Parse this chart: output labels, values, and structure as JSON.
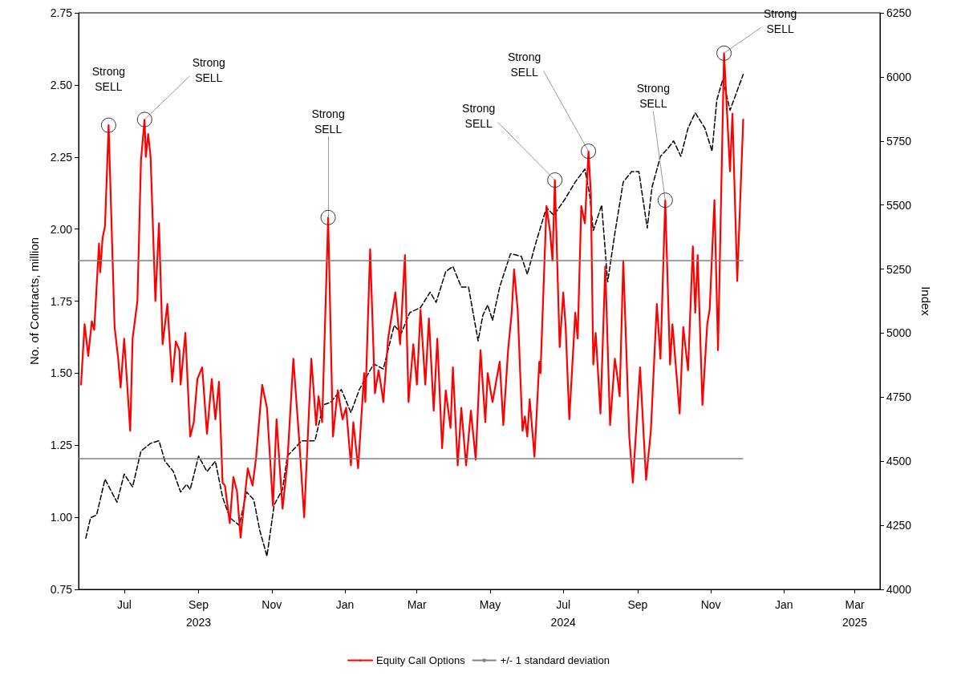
{
  "chart_data": {
    "type": "line",
    "ylabel": "No. of Contracts, million",
    "y2label": "Index",
    "legend": "bottom",
    "grid": false,
    "marker": "none",
    "xlim": [
      "2023-05-24",
      "2025-03-22"
    ],
    "xticks": [
      {
        "value": "2023-07-01",
        "label": "Jul"
      },
      {
        "value": "2023-09-01",
        "label": "Sep\n2023"
      },
      {
        "value": "2023-11-01",
        "label": "Nov"
      },
      {
        "value": "2024-01-01",
        "label": "Jan"
      },
      {
        "value": "2024-03-01",
        "label": "Mar"
      },
      {
        "value": "2024-05-01",
        "label": "May"
      },
      {
        "value": "2024-07-01",
        "label": "Jul\n2024"
      },
      {
        "value": "2024-09-01",
        "label": "Sep"
      },
      {
        "value": "2024-11-01",
        "label": "Nov"
      },
      {
        "value": "2025-01-01",
        "label": "Jan"
      },
      {
        "value": "2025-03-01",
        "label": "Mar\n2025"
      }
    ],
    "ylim": [
      0.75,
      2.75
    ],
    "yticks": [
      0.75,
      {
        "value": 1,
        "label": "1.00"
      },
      1.25,
      {
        "value": 1.5,
        "label": "1.50"
      },
      1.75,
      {
        "value": 2,
        "label": "2.00"
      },
      2.25,
      {
        "value": 2.5,
        "label": "2.50"
      },
      2.75
    ],
    "y2lim": [
      4000,
      6250
    ],
    "y2ticks": [
      4000,
      4250,
      4500,
      4750,
      5000,
      5250,
      5500,
      5750,
      6000,
      6250
    ],
    "series": [
      {
        "color": "#000000",
        "axis": "y2",
        "line_style": "dashed",
        "x": [
          "2023-05-30",
          "2023-06-03",
          "2023-06-08",
          "2023-06-15",
          "2023-06-25",
          "2023-07-01",
          "2023-07-08",
          "2023-07-15",
          "2023-07-23",
          "2023-07-30",
          "2023-08-04",
          "2023-08-11",
          "2023-08-17",
          "2023-08-22",
          "2023-08-25",
          "2023-09-01",
          "2023-09-08",
          "2023-09-15",
          "2023-09-21",
          "2023-09-27",
          "2023-10-05",
          "2023-10-11",
          "2023-10-17",
          "2023-10-22",
          "2023-10-28",
          "2023-11-03",
          "2023-11-10",
          "2023-11-14",
          "2023-11-26",
          "2023-12-07",
          "2023-12-14",
          "2023-12-20",
          "2023-12-29",
          "2024-01-06",
          "2024-01-13",
          "2024-01-25",
          "2024-02-02",
          "2024-02-11",
          "2024-02-17",
          "2024-02-24",
          "2024-03-04",
          "2024-03-12",
          "2024-03-17",
          "2024-03-25",
          "2024-03-31",
          "2024-04-07",
          "2024-04-13",
          "2024-04-21",
          "2024-04-25",
          "2024-04-29",
          "2024-05-03",
          "2024-05-09",
          "2024-05-18",
          "2024-05-27",
          "2024-06-01",
          "2024-06-08",
          "2024-06-17",
          "2024-06-23",
          "2024-07-02",
          "2024-07-11",
          "2024-07-19",
          "2024-07-23",
          "2024-07-26",
          "2024-08-02",
          "2024-08-07",
          "2024-08-13",
          "2024-08-20",
          "2024-08-27",
          "2024-09-02",
          "2024-09-09",
          "2024-09-13",
          "2024-09-20",
          "2024-09-26",
          "2024-10-01",
          "2024-10-07",
          "2024-10-13",
          "2024-10-19",
          "2024-10-27",
          "2024-11-02",
          "2024-11-06",
          "2024-11-11",
          "2024-11-17",
          "2024-11-28"
        ],
        "values": [
          4200,
          4280,
          4290,
          4430,
          4340,
          4450,
          4400,
          4540,
          4570,
          4580,
          4500,
          4460,
          4380,
          4410,
          4390,
          4520,
          4460,
          4500,
          4360,
          4280,
          4250,
          4380,
          4350,
          4230,
          4130,
          4330,
          4390,
          4520,
          4580,
          4580,
          4720,
          4730,
          4780,
          4690,
          4780,
          4880,
          4860,
          5030,
          5000,
          5080,
          5100,
          5160,
          5120,
          5240,
          5260,
          5180,
          5180,
          4970,
          5070,
          5110,
          5050,
          5180,
          5310,
          5300,
          5230,
          5350,
          5490,
          5460,
          5520,
          5590,
          5640,
          5540,
          5400,
          5500,
          5200,
          5390,
          5590,
          5630,
          5630,
          5410,
          5570,
          5690,
          5720,
          5750,
          5690,
          5800,
          5860,
          5800,
          5710,
          5910,
          5990,
          5870,
          6010
        ]
      },
      {
        "name": "Equity Call Options",
        "color": "#ff0000",
        "line_style": "solid",
        "x": [
          "2023-05-26",
          "2023-05-29",
          "2023-06-01",
          "2023-06-04",
          "2023-06-06",
          "2023-06-10",
          "2023-06-11",
          "2023-06-13",
          "2023-06-15",
          "2023-06-18",
          "2023-06-23",
          "2023-06-26",
          "2023-06-28",
          "2023-07-01",
          "2023-07-06",
          "2023-07-08",
          "2023-07-12",
          "2023-07-15",
          "2023-07-18",
          "2023-07-19",
          "2023-07-21",
          "2023-07-23",
          "2023-07-27",
          "2023-07-30",
          "2023-08-02",
          "2023-08-06",
          "2023-08-10",
          "2023-08-13",
          "2023-08-16",
          "2023-08-17",
          "2023-08-21",
          "2023-08-25",
          "2023-08-28",
          "2023-08-31",
          "2023-09-04",
          "2023-09-08",
          "2023-09-12",
          "2023-09-15",
          "2023-09-18",
          "2023-09-21",
          "2023-09-23",
          "2023-09-27",
          "2023-09-30",
          "2023-10-03",
          "2023-10-06",
          "2023-10-10",
          "2023-10-12",
          "2023-10-16",
          "2023-10-19",
          "2023-10-24",
          "2023-10-28",
          "2023-11-02",
          "2023-11-05",
          "2023-11-10",
          "2023-11-14",
          "2023-11-19",
          "2023-11-24",
          "2023-11-28",
          "2023-12-04",
          "2023-12-08",
          "2023-12-10",
          "2023-12-13",
          "2023-12-18",
          "2023-12-22",
          "2023-12-26",
          "2023-12-30",
          "2024-01-02",
          "2024-01-06",
          "2024-01-08",
          "2024-01-12",
          "2024-01-17",
          "2024-01-18",
          "2024-01-22",
          "2024-01-26",
          "2024-01-29",
          "2024-01-31",
          "2024-02-02",
          "2024-02-06",
          "2024-02-12",
          "2024-02-16",
          "2024-02-20",
          "2024-02-23",
          "2024-02-27",
          "2024-03-01",
          "2024-03-04",
          "2024-03-08",
          "2024-03-11",
          "2024-03-15",
          "2024-03-18",
          "2024-03-22",
          "2024-03-25",
          "2024-03-29",
          "2024-03-31",
          "2024-04-04",
          "2024-04-07",
          "2024-04-11",
          "2024-04-15",
          "2024-04-19",
          "2024-04-23",
          "2024-04-27",
          "2024-04-29",
          "2024-05-03",
          "2024-05-09",
          "2024-05-12",
          "2024-05-16",
          "2024-05-19",
          "2024-05-21",
          "2024-05-24",
          "2024-05-28",
          "2024-05-30",
          "2024-06-01",
          "2024-06-03",
          "2024-06-07",
          "2024-06-11",
          "2024-06-12",
          "2024-06-17",
          "2024-06-20",
          "2024-06-22",
          "2024-06-24",
          "2024-06-28",
          "2024-07-01",
          "2024-07-03",
          "2024-07-06",
          "2024-07-11",
          "2024-07-13",
          "2024-07-16",
          "2024-07-19",
          "2024-07-22",
          "2024-07-24",
          "2024-07-26",
          "2024-07-28",
          "2024-08-01",
          "2024-08-05",
          "2024-08-09",
          "2024-08-13",
          "2024-08-15",
          "2024-08-17",
          "2024-08-20",
          "2024-08-25",
          "2024-08-28",
          "2024-09-03",
          "2024-09-08",
          "2024-09-12",
          "2024-09-17",
          "2024-09-20",
          "2024-09-24",
          "2024-09-28",
          "2024-09-30",
          "2024-10-06",
          "2024-10-09",
          "2024-10-13",
          "2024-10-17",
          "2024-10-19",
          "2024-10-21",
          "2024-10-25",
          "2024-10-29",
          "2024-10-31",
          "2024-11-04",
          "2024-11-07",
          "2024-11-12",
          "2024-11-17",
          "2024-11-19",
          "2024-11-23",
          "2024-11-28"
        ],
        "values": [
          1.46,
          1.67,
          1.56,
          1.68,
          1.65,
          1.95,
          1.85,
          1.97,
          2.01,
          2.36,
          1.66,
          1.55,
          1.45,
          1.62,
          1.3,
          1.62,
          1.75,
          2.24,
          2.38,
          2.25,
          2.33,
          2.25,
          1.75,
          2.02,
          1.6,
          1.74,
          1.47,
          1.61,
          1.58,
          1.46,
          1.64,
          1.28,
          1.33,
          1.48,
          1.52,
          1.29,
          1.48,
          1.34,
          1.47,
          1.12,
          1.11,
          0.98,
          1.14,
          1.09,
          0.93,
          1.09,
          1.17,
          1.11,
          1.21,
          1.46,
          1.38,
          1.04,
          1.34,
          1.03,
          1.19,
          1.55,
          1.26,
          1.0,
          1.55,
          1.32,
          1.42,
          1.33,
          2.04,
          1.28,
          1.44,
          1.34,
          1.38,
          1.18,
          1.33,
          1.17,
          1.5,
          1.4,
          1.93,
          1.43,
          1.51,
          1.46,
          1.4,
          1.62,
          1.78,
          1.6,
          1.91,
          1.4,
          1.6,
          1.46,
          1.72,
          1.46,
          1.69,
          1.37,
          1.62,
          1.24,
          1.44,
          1.31,
          1.52,
          1.18,
          1.38,
          1.18,
          1.37,
          1.2,
          1.58,
          1.33,
          1.5,
          1.4,
          1.54,
          1.32,
          1.58,
          1.71,
          1.86,
          1.72,
          1.3,
          1.35,
          1.28,
          1.41,
          1.21,
          1.54,
          1.5,
          2.08,
          1.99,
          1.89,
          2.17,
          1.59,
          1.78,
          1.66,
          1.34,
          1.71,
          1.62,
          2.08,
          2.02,
          2.27,
          2.12,
          1.53,
          1.64,
          1.36,
          1.87,
          1.32,
          1.55,
          1.49,
          1.42,
          1.89,
          1.28,
          1.12,
          1.52,
          1.13,
          1.3,
          1.74,
          1.55,
          2.1,
          1.53,
          1.67,
          1.36,
          1.66,
          1.51,
          1.94,
          1.71,
          1.91,
          1.39,
          1.67,
          1.72,
          2.1,
          1.58,
          2.61,
          2.2,
          2.4,
          1.82,
          2.38
        ]
      }
    ],
    "ref_lines": [
      {
        "axis": "y",
        "value": 1.89,
        "label": "+/- 1 standard deviation",
        "color": "#808080"
      },
      {
        "axis": "y",
        "value": 1.205,
        "color": "#808080"
      }
    ],
    "annotations": [
      {
        "text": "Strong\nSELL",
        "x": "2023-06-18",
        "y": 2.36
      },
      {
        "text": "Strong\nSELL",
        "x": "2023-07-18",
        "y": 2.38
      },
      {
        "text": "Strong\nSELL",
        "x": "2023-12-18",
        "y": 2.04
      },
      {
        "text": "Strong\nSELL",
        "x": "2024-06-24",
        "y": 2.17
      },
      {
        "text": "Strong\nSELL",
        "x": "2024-07-22",
        "y": 2.27
      },
      {
        "text": "Strong\nSELL",
        "x": "2024-09-24",
        "y": 2.1
      },
      {
        "text": "Strong\nSELL",
        "x": "2024-11-12",
        "y": 2.61
      }
    ]
  }
}
